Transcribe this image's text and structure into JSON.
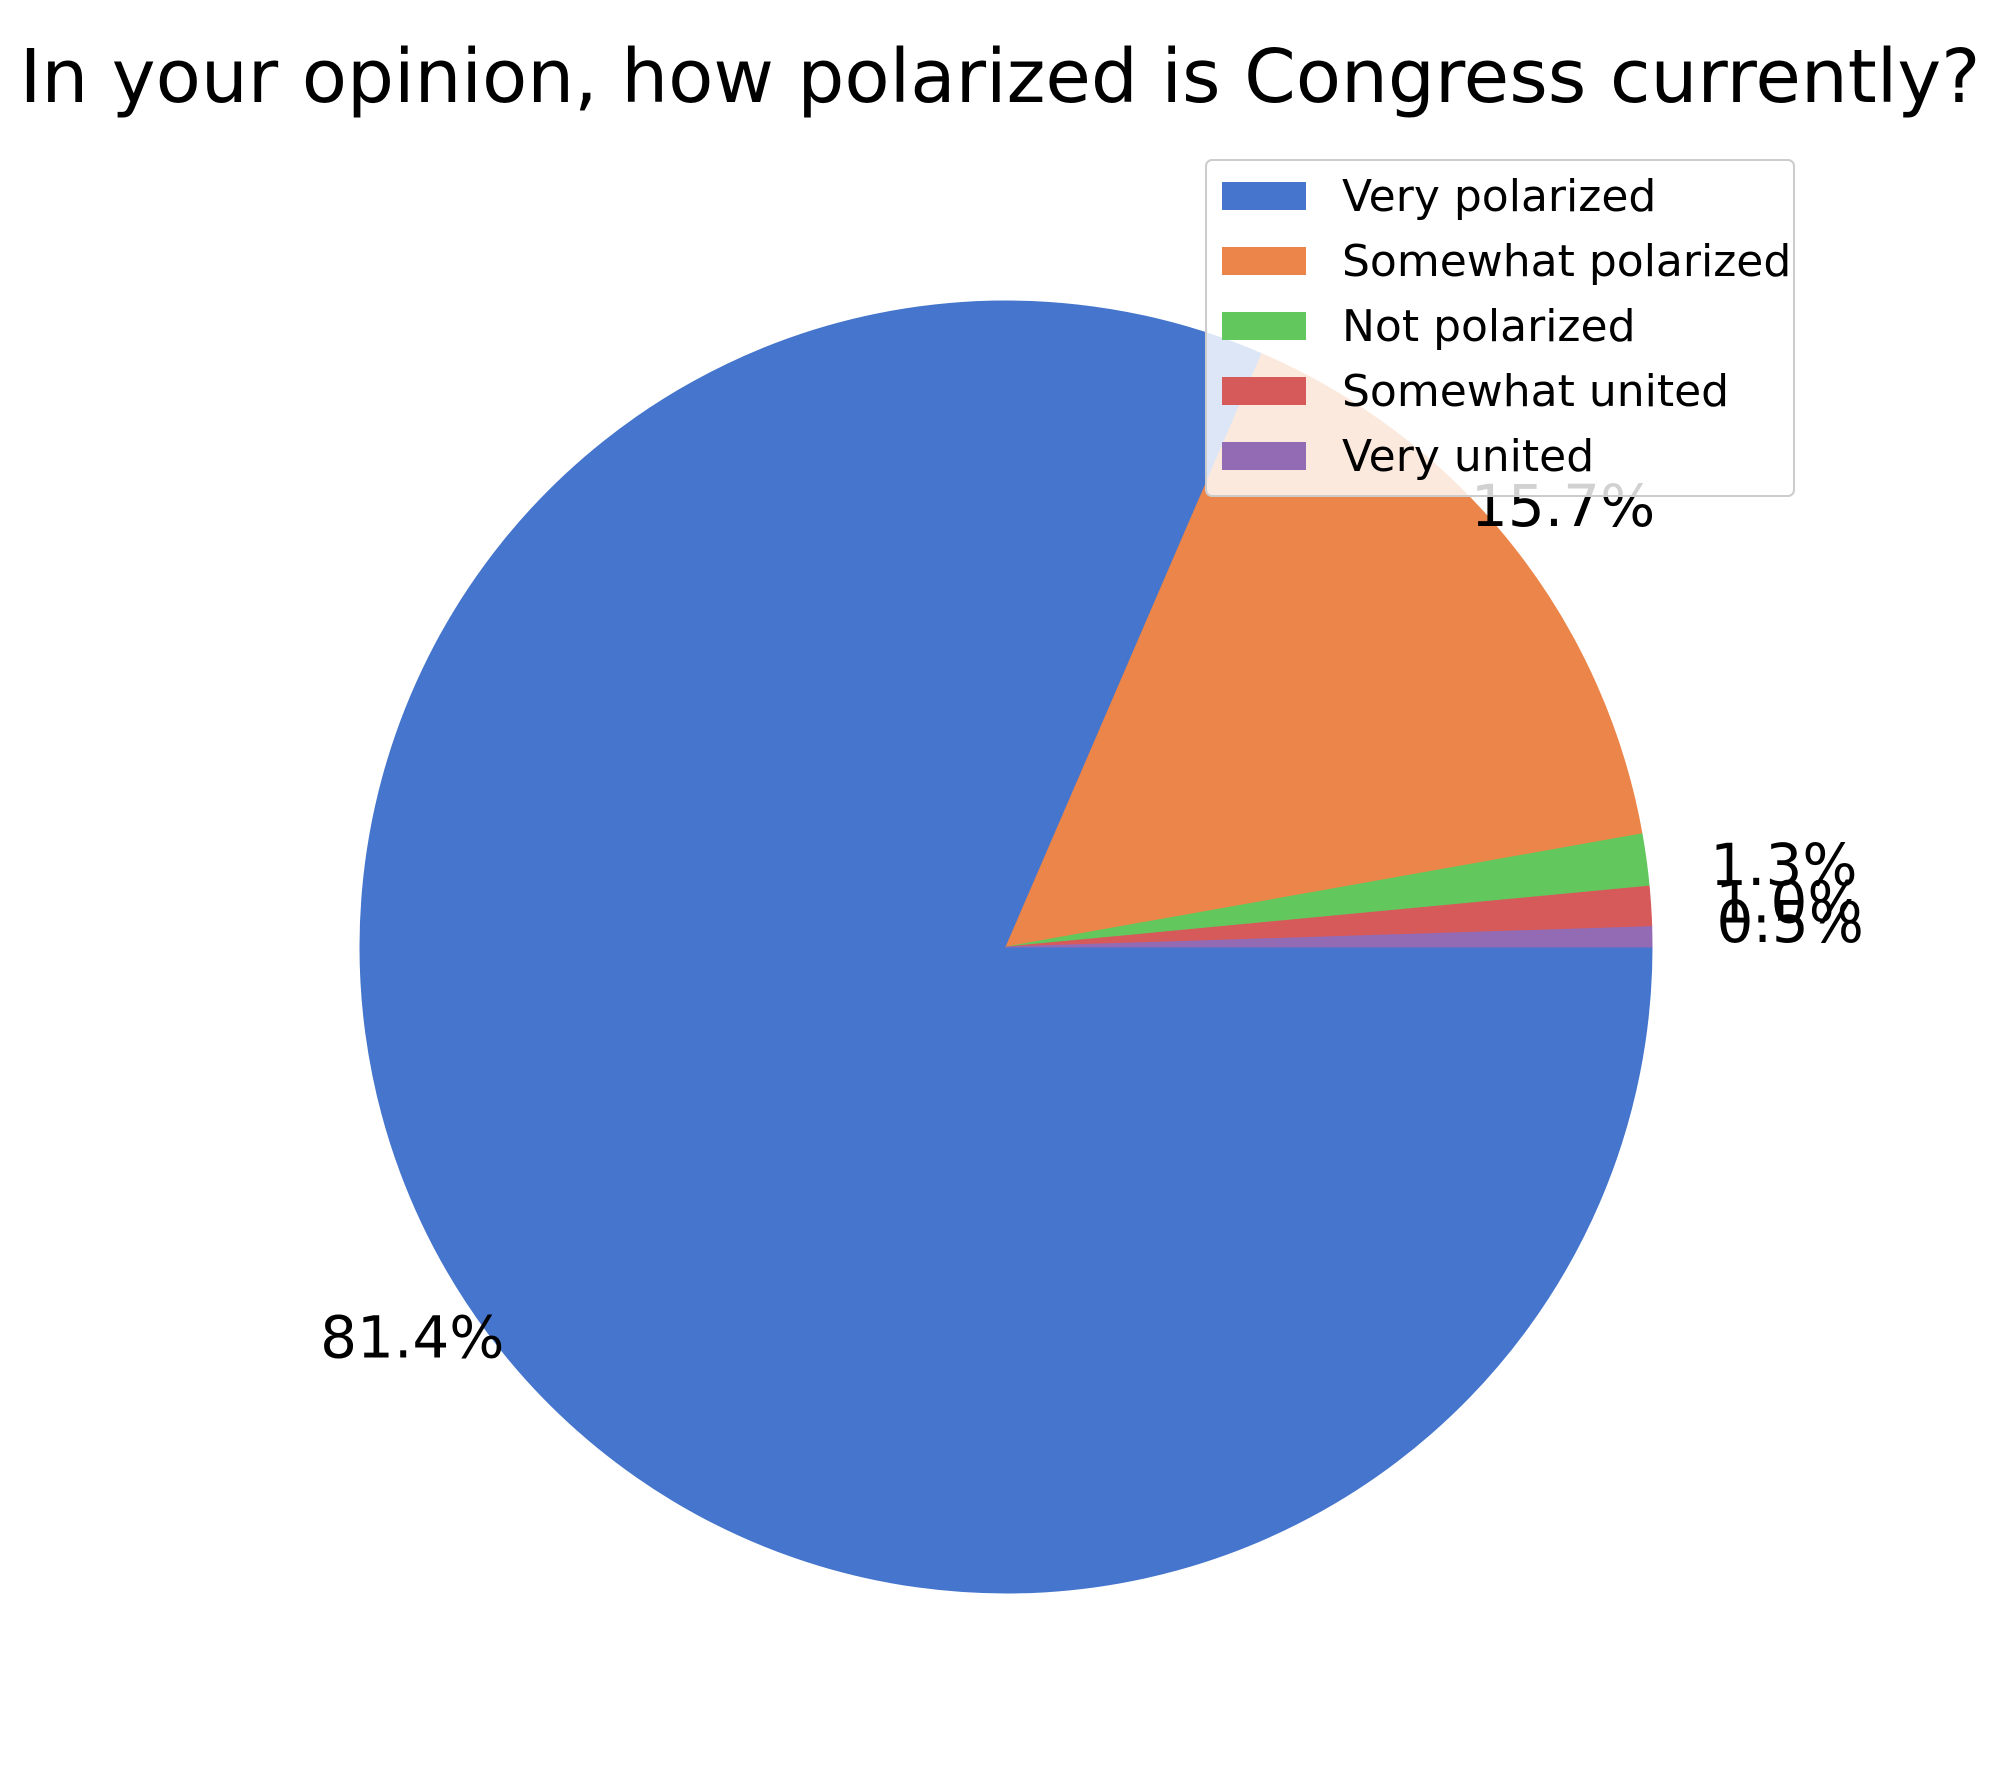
{
  "chart_data": {
    "type": "pie",
    "title": "In your opinion, how polarized is Congress currently?",
    "categories": [
      "Very polarized",
      "Somewhat polarized",
      "Not polarized",
      "Somewhat united",
      "Very united"
    ],
    "values": [
      81.4,
      15.7,
      1.3,
      1.0,
      0.5
    ],
    "labels": [
      "81.4%",
      "15.7%",
      "1.3%",
      "1.0%",
      "0.5%"
    ],
    "colors": [
      "#4575cc",
      "#eb8549",
      "#62c85d",
      "#d65a5a",
      "#936bb5"
    ],
    "start_angle_deg": 0,
    "direction": "clockwise",
    "legend_position": "upper-right"
  }
}
